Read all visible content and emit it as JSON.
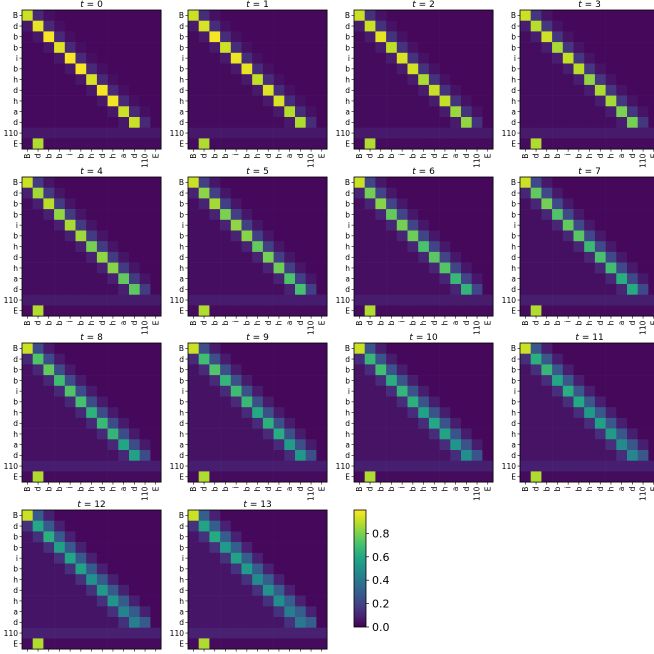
{
  "chart_data": {
    "type": "heatmap",
    "row_labels": [
      "B",
      "d",
      "b",
      "b",
      "i",
      "b",
      "h",
      "d",
      "h",
      "a",
      "d",
      "110",
      "E"
    ],
    "col_labels": [
      "B",
      "d",
      "b",
      "b",
      "i",
      "b",
      "h",
      "d",
      "h",
      "a",
      "d",
      "110",
      "E"
    ],
    "colormap": "viridis",
    "colorbar": {
      "range": [
        0.0,
        1.0
      ],
      "ticks": [
        "0.0",
        "0.2",
        "0.4",
        "0.6",
        "0.8"
      ]
    },
    "panels": [
      {
        "title_var": "t",
        "title_eq": " = ",
        "title_val": "0",
        "diag_peak": 0.97,
        "step": [
          2,
          4,
          5,
          7,
          8
        ],
        "spread": 0.1
      },
      {
        "title_var": "t",
        "title_eq": " = ",
        "title_val": "1",
        "diag_peak": 0.95,
        "step": [
          2,
          4,
          5,
          7,
          8
        ],
        "spread": 0.14
      },
      {
        "title_var": "t",
        "title_eq": " = ",
        "title_val": "2",
        "diag_peak": 0.93,
        "step": [
          2,
          4,
          5,
          7,
          8
        ],
        "spread": 0.18
      },
      {
        "title_var": "t",
        "title_eq": " = ",
        "title_val": "3",
        "diag_peak": 0.9,
        "step": [
          2,
          4,
          5,
          7,
          8
        ],
        "spread": 0.22
      },
      {
        "title_var": "t",
        "title_eq": " = ",
        "title_val": "4",
        "diag_peak": 0.87,
        "step": [
          2,
          4,
          5,
          7,
          8
        ],
        "spread": 0.26
      },
      {
        "title_var": "t",
        "title_eq": " = ",
        "title_val": "5",
        "diag_peak": 0.84,
        "step": [
          2,
          4,
          5,
          7,
          8
        ],
        "spread": 0.3
      },
      {
        "title_var": "t",
        "title_eq": " = ",
        "title_val": "6",
        "diag_peak": 0.8,
        "step": [
          2,
          4,
          5,
          7,
          8
        ],
        "spread": 0.34
      },
      {
        "title_var": "t",
        "title_eq": " = ",
        "title_val": "7",
        "diag_peak": 0.77,
        "step": [
          2,
          4,
          5,
          7,
          8
        ],
        "spread": 0.38
      },
      {
        "title_var": "t",
        "title_eq": " = ",
        "title_val": "8",
        "diag_peak": 0.74,
        "step": [
          2,
          4,
          5,
          7,
          8
        ],
        "spread": 0.42
      },
      {
        "title_var": "t",
        "title_eq": " = ",
        "title_val": "9",
        "diag_peak": 0.71,
        "step": [
          2,
          4,
          5,
          7,
          8
        ],
        "spread": 0.46
      },
      {
        "title_var": "t",
        "title_eq": " = ",
        "title_val": "10",
        "diag_peak": 0.68,
        "step": [
          2,
          4,
          5,
          7,
          8
        ],
        "spread": 0.5
      },
      {
        "title_var": "t",
        "title_eq": " = ",
        "title_val": "11",
        "diag_peak": 0.65,
        "step": [
          2,
          4,
          5,
          7,
          8
        ],
        "spread": 0.54
      },
      {
        "title_var": "t",
        "title_eq": " = ",
        "title_val": "12",
        "diag_peak": 0.62,
        "step": [
          2,
          4,
          5,
          7,
          8
        ],
        "spread": 0.58
      },
      {
        "title_var": "t",
        "title_eq": " = ",
        "title_val": "13",
        "diag_peak": 0.6,
        "step": [
          2,
          4,
          5,
          7,
          8
        ],
        "spread": 0.62
      }
    ],
    "fixed_cells": [
      {
        "row": 0,
        "col": 0,
        "value": 0.92
      },
      {
        "row": 12,
        "col": 1,
        "value": 0.88
      }
    ]
  }
}
